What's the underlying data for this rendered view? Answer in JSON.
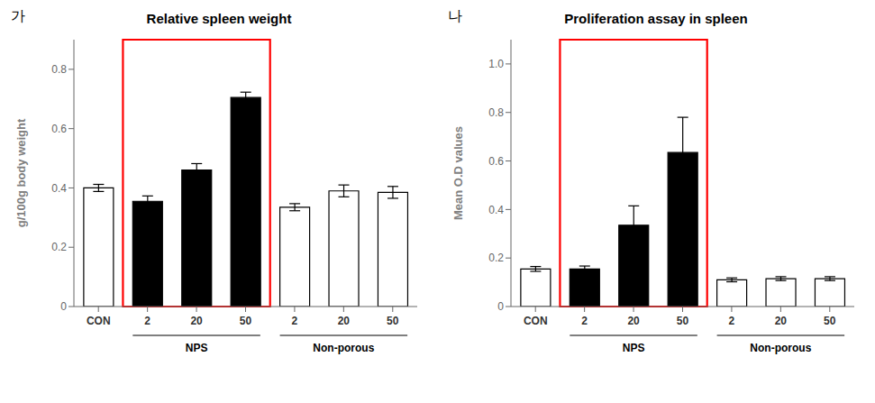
{
  "chart_data": [
    {
      "type": "bar",
      "title": "Relative spleen weight",
      "y_label": "g/100g body weight",
      "categories": [
        "CON",
        "2",
        "20",
        "50",
        "2",
        "20",
        "50"
      ],
      "values": [
        0.4,
        0.355,
        0.46,
        0.705,
        0.335,
        0.39,
        0.385
      ],
      "errors": [
        0.012,
        0.018,
        0.022,
        0.018,
        0.012,
        0.02,
        0.02
      ],
      "colors": [
        "white",
        "black",
        "black",
        "black",
        "white",
        "white",
        "white"
      ],
      "ylim": [
        0,
        0.9
      ],
      "yticks": [
        0,
        0.2,
        0.4,
        0.6,
        0.8
      ],
      "annotations": [
        "가",
        "NPS",
        "Non-porous"
      ],
      "grid": false
    },
    {
      "type": "bar",
      "title": "Proliferation assay in spleen",
      "y_label": "Mean O.D values",
      "categories": [
        "CON",
        "2",
        "20",
        "50",
        "2",
        "20",
        "50"
      ],
      "values": [
        0.155,
        0.155,
        0.335,
        0.635,
        0.11,
        0.115,
        0.115
      ],
      "errors": [
        0.01,
        0.012,
        0.08,
        0.145,
        0.008,
        0.008,
        0.008
      ],
      "colors": [
        "white",
        "black",
        "black",
        "black",
        "white",
        "white",
        "white"
      ],
      "ylim": [
        0,
        1.1
      ],
      "yticks": [
        0,
        0.2,
        0.4,
        0.6,
        0.8,
        {
          "value": 1,
          "label": "1.0"
        }
      ],
      "annotations": [
        "나",
        "NPS",
        "Non-porous"
      ],
      "grid": false
    }
  ]
}
